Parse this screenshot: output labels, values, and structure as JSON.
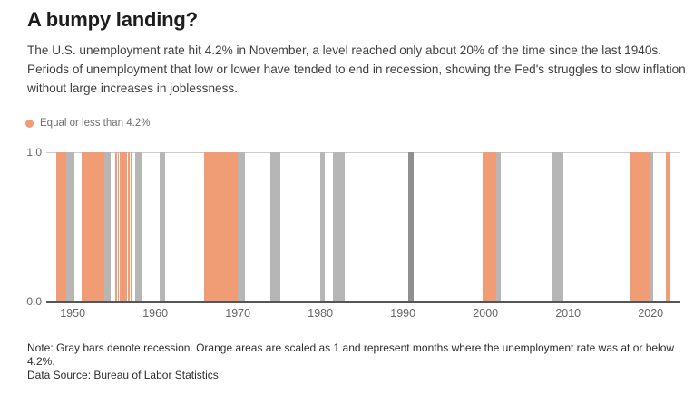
{
  "header": {
    "title": "A bumpy landing?",
    "subtitle": "The U.S. unemployment rate hit 4.2% in November, a level reached only about 20% of the time since the last 1940s. Periods of unemployment that low or lower have tended to end in recession, showing the Fed's struggles to slow inflation without large increases in joblessness."
  },
  "legend": {
    "label": "Equal or less than 4.2%"
  },
  "footer": {
    "note": "Note: Gray bars denote recession. Orange areas are scaled as 1 and represent months where the unemployment rate was at or below 4.2%.",
    "source": "Data Source: Bureau of Labor Statistics"
  },
  "colors": {
    "orange": "#f09d75",
    "gray": "#b6b6b6",
    "gray_dark": "#8f8f8f",
    "axis": "#565656",
    "gridline": "#cccccc"
  },
  "chart_data": {
    "type": "area",
    "title": "A bumpy landing?",
    "xlabel": "",
    "ylabel": "",
    "ylim": [
      0,
      1
    ],
    "y_ticks": [
      "1.0",
      "0.0"
    ],
    "x_domain": [
      1946.8,
      2023.6
    ],
    "x_ticks": [
      1950,
      1960,
      1970,
      1980,
      1990,
      2000,
      2010,
      2020
    ],
    "grid": "top gridline at 1.0 only, dark baseline at 0.0",
    "legend_position": "top-left",
    "series": [
      {
        "name": "Recession",
        "band_name": "recession-band",
        "color": "#b6b6b6",
        "value": 1,
        "periods": [
          [
            1949.25,
            1950.2
          ],
          [
            1953.85,
            1954.6
          ],
          [
            1957.55,
            1958.35
          ],
          [
            1960.5,
            1961.2
          ],
          [
            1970.0,
            1970.9
          ],
          [
            1973.95,
            1975.15
          ],
          [
            1980.0,
            1980.55
          ],
          [
            1981.5,
            1982.9
          ],
          [
            1990.6,
            1991.25,
            "dark"
          ],
          [
            2001.25,
            2001.9
          ],
          [
            2007.95,
            2009.4
          ],
          [
            2020.0,
            2020.3
          ]
        ]
      },
      {
        "name": "Equal or less than 4.2%",
        "band_name": "low-unemployment-band",
        "color": "#f09d75",
        "value": 1,
        "periods": [
          [
            1948.0,
            1949.25
          ],
          [
            1951.1,
            1953.85
          ],
          [
            1955.15,
            1955.35
          ],
          [
            1955.45,
            1955.62
          ],
          [
            1955.72,
            1955.88
          ],
          [
            1956.0,
            1956.2
          ],
          [
            1956.28,
            1956.58
          ],
          [
            1956.7,
            1956.87
          ],
          [
            1957.0,
            1957.2
          ],
          [
            1965.9,
            1970.0
          ],
          [
            1999.6,
            2001.25
          ],
          [
            2017.55,
            2020.0
          ],
          [
            2021.8,
            2022.3
          ]
        ]
      }
    ]
  }
}
